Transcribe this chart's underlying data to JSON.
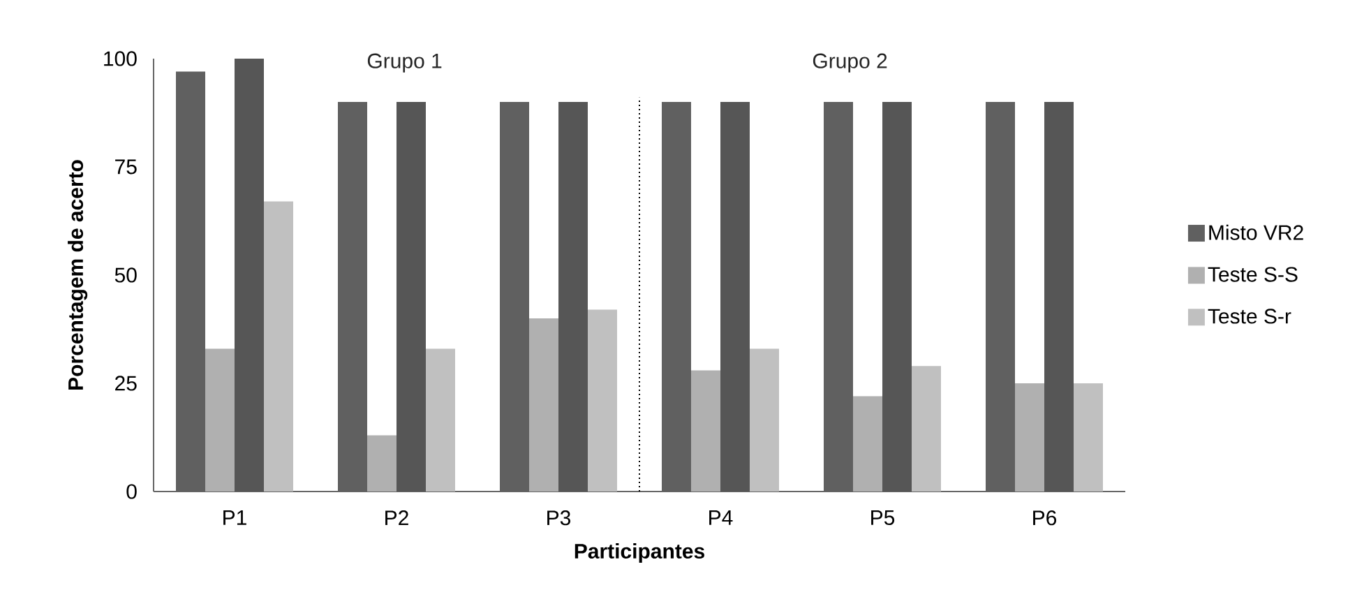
{
  "chart_data": {
    "type": "bar",
    "xlabel": "Participantes",
    "ylabel": "Porcentagem de acerto",
    "categories": [
      "P1",
      "P2",
      "P3",
      "P4",
      "P5",
      "P6"
    ],
    "series": [
      {
        "name": "Misto VR2",
        "color": "#606060",
        "values": [
          97,
          90,
          90,
          90,
          90,
          90
        ]
      },
      {
        "name": "Teste S-S",
        "color": "#b0b0b0",
        "values": [
          33,
          13,
          40,
          28,
          22,
          25
        ]
      },
      {
        "color": "#565656",
        "values": [
          100,
          90,
          90,
          90,
          90,
          90
        ]
      },
      {
        "name": "Teste S-r",
        "color": "#c0c0c0",
        "values": [
          67,
          33,
          42,
          33,
          29,
          25
        ]
      }
    ],
    "ylim": [
      0,
      100
    ],
    "yticks": [
      0,
      25,
      50,
      75,
      100
    ],
    "grid": false,
    "legend": "right",
    "annotations": [
      "Grupo 1",
      "Grupo 2"
    ]
  }
}
